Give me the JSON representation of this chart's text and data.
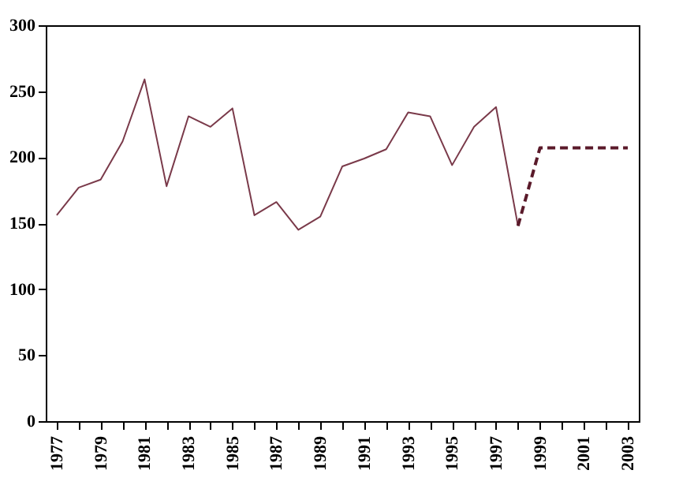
{
  "chart_data": {
    "type": "line",
    "categories": [
      "1977",
      null,
      "1979",
      null,
      "1981",
      null,
      "1983",
      null,
      "1985",
      null,
      "1987",
      null,
      "1989",
      null,
      "1991",
      null,
      "1993",
      null,
      "1995",
      null,
      "1997",
      null,
      "1999",
      null,
      "2001",
      null,
      "2003"
    ],
    "series": [
      {
        "color": "#7a3a4a",
        "line_style": "solid",
        "values": [
          156,
          177,
          183,
          212,
          259,
          178,
          231,
          223,
          237,
          156,
          166,
          145,
          155,
          193,
          199,
          206,
          234,
          231,
          194,
          223,
          238,
          148,
          null,
          null,
          null,
          null,
          null
        ]
      },
      {
        "color": "#5a1a2a",
        "line_style": "dashed",
        "values": [
          null,
          null,
          null,
          null,
          null,
          null,
          null,
          null,
          null,
          null,
          null,
          null,
          null,
          null,
          null,
          null,
          null,
          null,
          null,
          null,
          null,
          148,
          207,
          207,
          207,
          207,
          207
        ]
      }
    ],
    "ylim": [
      0,
      300
    ],
    "yticks": [
      0,
      50,
      100,
      150,
      200,
      250,
      300
    ],
    "grid": false
  }
}
